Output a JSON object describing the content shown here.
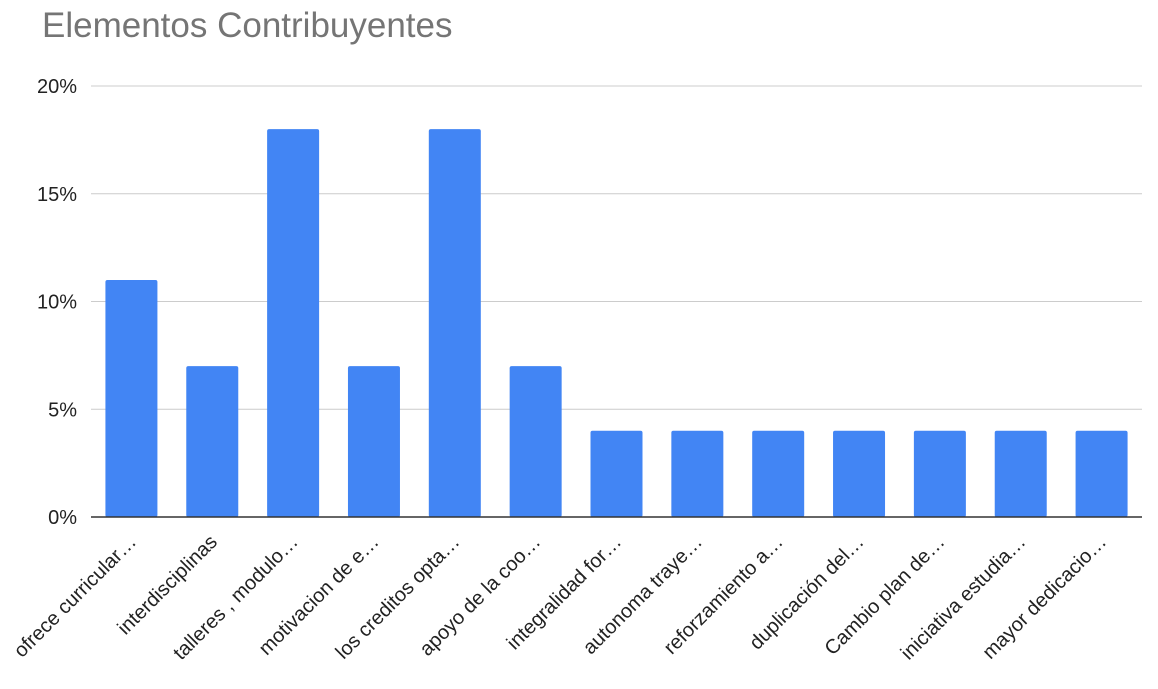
{
  "chart_data": {
    "type": "bar",
    "title": "Elementos Contribuyentes",
    "xlabel": "",
    "ylabel": "",
    "categories": [
      "ofrece curricular…",
      "interdisciplinas",
      "talleres , modulo…",
      "motivacion de e…",
      "los creditos opta…",
      "apoyo de la coo…",
      "integralidad for…",
      "autonoma traye…",
      "reforzamiento a…",
      "duplicación del…",
      "Cambio plan de…",
      "iniciativa estudia…",
      "mayor dedicacio…"
    ],
    "values": [
      11,
      7,
      18,
      7,
      18,
      7,
      4,
      4,
      4,
      4,
      4,
      4,
      4
    ],
    "ylim": [
      0,
      20
    ],
    "yticks": [
      0,
      5,
      10,
      15,
      20
    ],
    "ytick_labels": [
      "0%",
      "5%",
      "10%",
      "15%",
      "20%"
    ],
    "grid": true,
    "legend": "none",
    "colors": {
      "bar": "#4285F4",
      "grid": "#cccccc",
      "axis": "#333333"
    }
  }
}
